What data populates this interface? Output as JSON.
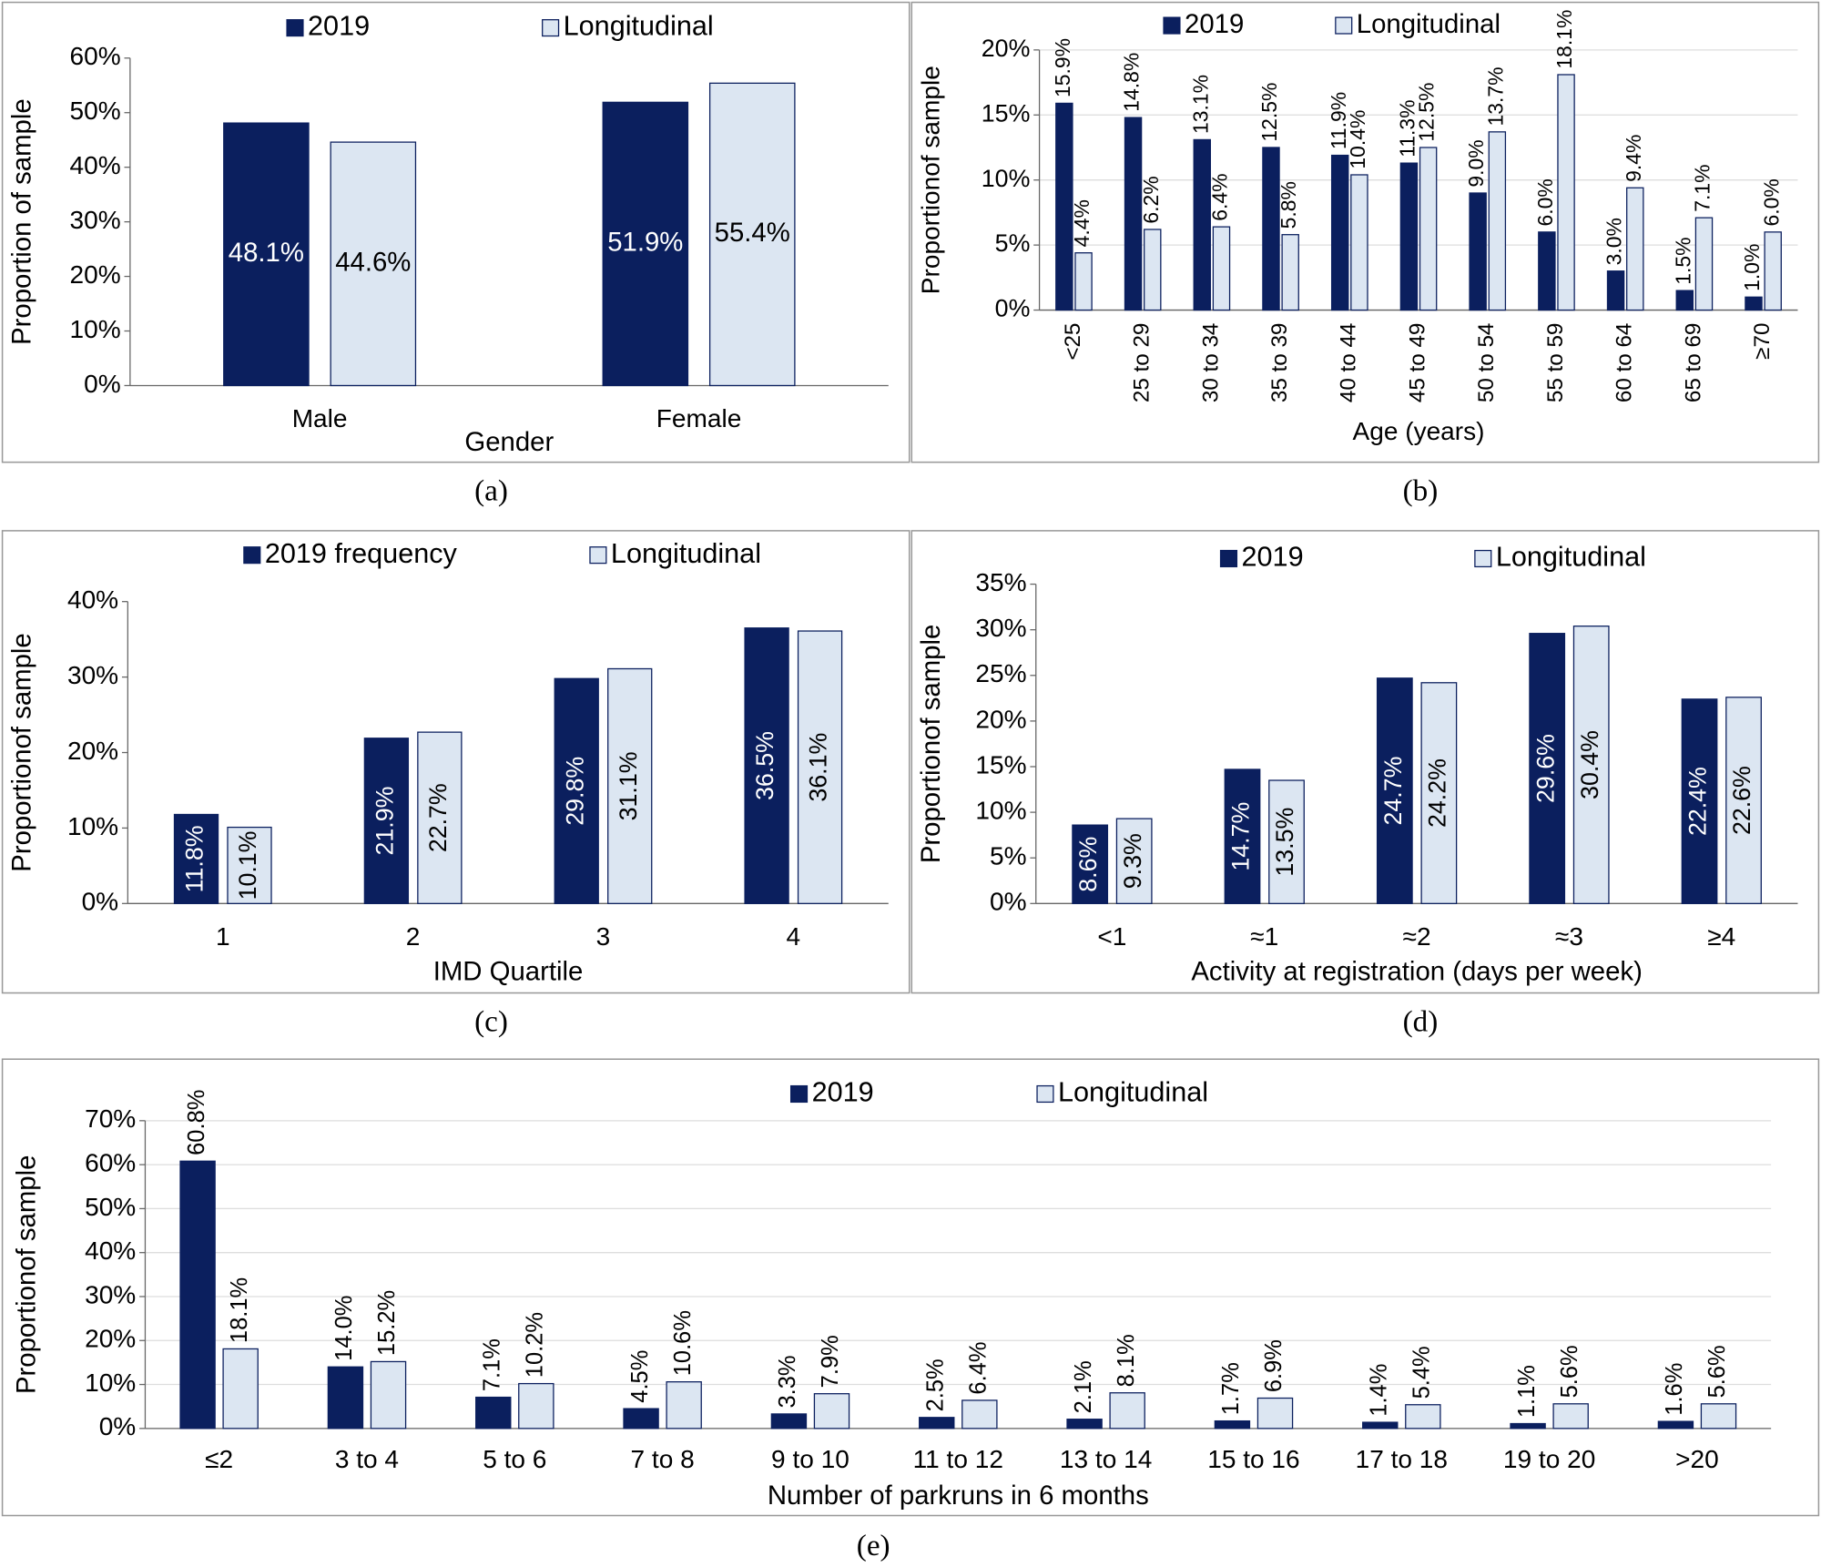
{
  "chart_data": [
    {
      "type": "bar",
      "caption": "(a)",
      "x_label": "Gender",
      "y_label": "Proportion of sample",
      "categories": [
        "Male",
        "Female"
      ],
      "series": [
        {
          "name": "2019",
          "color": "#0b1f5e",
          "values": [
            48.1,
            51.9
          ],
          "value_labels": [
            "48.1%",
            "51.9%"
          ]
        },
        {
          "name": "Longitudinal",
          "color": "#dce6f2",
          "values": [
            44.6,
            55.4
          ],
          "value_labels": [
            "44.6%",
            "55.4%"
          ]
        }
      ],
      "ylim": [
        0,
        60
      ],
      "yticks": [
        {
          "value": 0,
          "label": "0%"
        },
        {
          "value": 10,
          "label": "10%"
        },
        {
          "value": 20,
          "label": "20%"
        },
        {
          "value": 30,
          "label": "30%"
        },
        {
          "value": 40,
          "label": "40%"
        },
        {
          "value": 50,
          "label": "50%"
        },
        {
          "value": 60,
          "label": "60%"
        }
      ],
      "grid": false,
      "label_position": "inside",
      "label_orientation": "horizontal",
      "rotate_categories": false
    },
    {
      "type": "bar",
      "caption": "(b)",
      "x_label": "Age (years)",
      "y_label": "Proportionof sample",
      "categories": [
        "<25",
        "25 to 29",
        "30 to 34",
        "35 to 39",
        "40 to 44",
        "45 to 49",
        "50 to 54",
        "55 to 59",
        "60 to 64",
        "65 to 69",
        "≥70"
      ],
      "series": [
        {
          "name": "2019",
          "color": "#0b1f5e",
          "values": [
            15.9,
            14.8,
            13.1,
            12.5,
            11.9,
            11.3,
            9.0,
            6.0,
            3.0,
            1.5,
            1.0
          ],
          "value_labels": [
            "15.9%",
            "14.8%",
            "13.1%",
            "12.5%",
            "11.9%",
            "11.3%",
            "9.0%",
            "6.0%",
            "3.0%",
            "1.5%",
            "1.0%"
          ]
        },
        {
          "name": "Longitudinal",
          "color": "#dce6f2",
          "values": [
            4.4,
            6.2,
            6.4,
            5.8,
            10.4,
            12.5,
            13.7,
            18.1,
            9.4,
            7.1,
            6.0
          ],
          "value_labels": [
            "4.4%",
            "6.2%",
            "6.4%",
            "5.8%",
            "10.4%",
            "12.5%",
            "13.7%",
            "18.1%",
            "9.4%",
            "7.1%",
            "6.0%"
          ]
        }
      ],
      "ylim": [
        0,
        20
      ],
      "yticks": [
        {
          "value": 0,
          "label": "0%"
        },
        {
          "value": 5,
          "label": "5%"
        },
        {
          "value": 10,
          "label": "10%"
        },
        {
          "value": 15,
          "label": "15%"
        },
        {
          "value": 20,
          "label": "20%"
        }
      ],
      "grid": true,
      "label_position": "above",
      "label_orientation": "vertical",
      "rotate_categories": true
    },
    {
      "type": "bar",
      "caption": "(c)",
      "x_label": "IMD Quartile",
      "y_label": "Proportionof sample",
      "categories": [
        "1",
        "2",
        "3",
        "4"
      ],
      "series": [
        {
          "name": "2019 frequency",
          "color": "#0b1f5e",
          "values": [
            11.8,
            21.9,
            29.8,
            36.5
          ],
          "value_labels": [
            "11.8%",
            "21.9%",
            "29.8%",
            "36.5%"
          ]
        },
        {
          "name": "Longitudinal",
          "color": "#dce6f2",
          "values": [
            10.1,
            22.7,
            31.1,
            36.1
          ],
          "value_labels": [
            "10.1%",
            "22.7%",
            "31.1%",
            "36.1%"
          ]
        }
      ],
      "ylim": [
        0,
        40
      ],
      "yticks": [
        {
          "value": 0,
          "label": "0%"
        },
        {
          "value": 10,
          "label": "10%"
        },
        {
          "value": 20,
          "label": "20%"
        },
        {
          "value": 30,
          "label": "30%"
        },
        {
          "value": 40,
          "label": "40%"
        }
      ],
      "grid": false,
      "label_position": "inside",
      "label_orientation": "vertical",
      "rotate_categories": false
    },
    {
      "type": "bar",
      "caption": "(d)",
      "x_label": "Activity at registration (days per week)",
      "y_label": "Proportionof sample",
      "categories": [
        "<1",
        "≈1",
        "≈2",
        "≈3",
        "≥4"
      ],
      "series": [
        {
          "name": "2019",
          "color": "#0b1f5e",
          "values": [
            8.6,
            14.7,
            24.7,
            29.6,
            22.4
          ],
          "value_labels": [
            "8.6%",
            "14.7%",
            "24.7%",
            "29.6%",
            "22.4%"
          ]
        },
        {
          "name": "Longitudinal",
          "color": "#dce6f2",
          "values": [
            9.3,
            13.5,
            24.2,
            30.4,
            22.6
          ],
          "value_labels": [
            "9.3%",
            "13.5%",
            "24.2%",
            "30.4%",
            "22.6%"
          ]
        }
      ],
      "ylim": [
        0,
        35
      ],
      "yticks": [
        {
          "value": 0,
          "label": "0%"
        },
        {
          "value": 5,
          "label": "5%"
        },
        {
          "value": 10,
          "label": "10%"
        },
        {
          "value": 15,
          "label": "15%"
        },
        {
          "value": 20,
          "label": "20%"
        },
        {
          "value": 25,
          "label": "25%"
        },
        {
          "value": 30,
          "label": "30%"
        },
        {
          "value": 35,
          "label": "35%"
        }
      ],
      "grid": false,
      "label_position": "inside",
      "label_orientation": "vertical",
      "rotate_categories": false
    },
    {
      "type": "bar",
      "caption": "(e)",
      "x_label": "Number of parkruns in 6 months",
      "y_label": "Proportionof sample",
      "categories": [
        "≤2",
        "3 to 4",
        "5 to 6",
        "7 to 8",
        "9 to 10",
        "11 to 12",
        "13 to 14",
        "15 to 16",
        "17 to 18",
        "19 to 20",
        ">20"
      ],
      "series": [
        {
          "name": "2019",
          "color": "#0b1f5e",
          "values": [
            60.8,
            14.0,
            7.1,
            4.5,
            3.3,
            2.5,
            2.1,
            1.7,
            1.4,
            1.1,
            1.6
          ],
          "value_labels": [
            "60.8%",
            "14.0%",
            "7.1%",
            "4.5%",
            "3.3%",
            "2.5%",
            "2.1%",
            "1.7%",
            "1.4%",
            "1.1%",
            "1.6%"
          ]
        },
        {
          "name": "Longitudinal",
          "color": "#dce6f2",
          "values": [
            18.1,
            15.2,
            10.2,
            10.6,
            7.9,
            6.4,
            8.1,
            6.9,
            5.4,
            5.6,
            5.6
          ],
          "value_labels": [
            "18.1%",
            "15.2%",
            "10.2%",
            "10.6%",
            "7.9%",
            "6.4%",
            "8.1%",
            "6.9%",
            "5.4%",
            "5.6%",
            "5.6%"
          ]
        }
      ],
      "ylim": [
        0,
        70
      ],
      "yticks": [
        {
          "value": 0,
          "label": "0%"
        },
        {
          "value": 10,
          "label": "10%"
        },
        {
          "value": 20,
          "label": "20%"
        },
        {
          "value": 30,
          "label": "30%"
        },
        {
          "value": 40,
          "label": "40%"
        },
        {
          "value": 50,
          "label": "50%"
        },
        {
          "value": 60,
          "label": "60%"
        },
        {
          "value": 70,
          "label": "70%"
        }
      ],
      "grid": true,
      "label_position": "above",
      "label_orientation": "vertical",
      "rotate_categories": false
    }
  ]
}
